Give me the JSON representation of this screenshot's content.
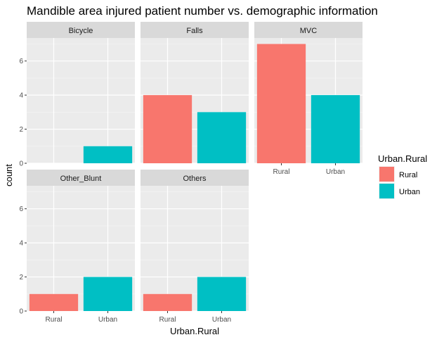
{
  "chart_data": {
    "type": "bar",
    "title": "Mandible area injured patient number vs. demographic information",
    "xlabel": "Urban.Rural",
    "ylabel": "count",
    "ylim": [
      0,
      7.35
    ],
    "yticks": [
      0,
      2,
      4,
      6
    ],
    "categories": [
      "Rural",
      "Urban"
    ],
    "colors": {
      "Rural": "#F8766D",
      "Urban": "#00BFC4"
    },
    "panel_background": "#EBEBEB",
    "strip_background": "#D9D9D9",
    "grid": true,
    "legend": {
      "title": "Urban.Rural",
      "position": "right",
      "entries": [
        "Rural",
        "Urban"
      ]
    },
    "facets": [
      {
        "name": "Bicycle",
        "values": {
          "Rural": 0,
          "Urban": 1
        }
      },
      {
        "name": "Falls",
        "values": {
          "Rural": 4,
          "Urban": 3
        }
      },
      {
        "name": "MVC",
        "values": {
          "Rural": 7,
          "Urban": 4
        }
      },
      {
        "name": "Other_Blunt",
        "values": {
          "Rural": 1,
          "Urban": 2
        }
      },
      {
        "name": "Others",
        "values": {
          "Rural": 1,
          "Urban": 2
        }
      }
    ]
  }
}
